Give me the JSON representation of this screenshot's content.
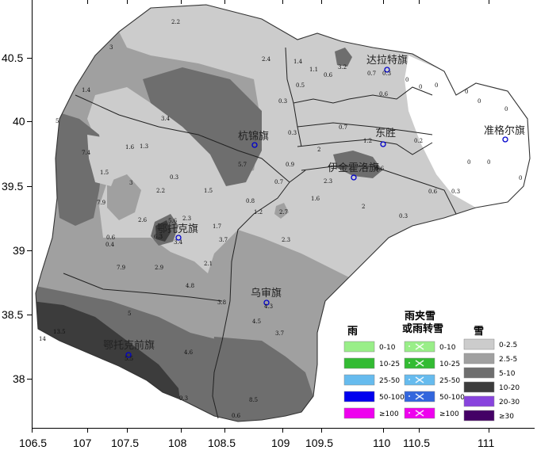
{
  "map": {
    "x_ticks": [
      "106.5",
      "107",
      "107.5",
      "108",
      "108.5",
      "109",
      "109.5",
      "110",
      "110.5",
      "111"
    ],
    "y_ticks": [
      "40.5",
      "40",
      "39.5",
      "39",
      "38.5",
      "38"
    ],
    "cities": [
      "达拉特旗",
      "杭锦旗",
      "东胜",
      "准格尔旗",
      "伊金霍洛旗",
      "鄂托克旗",
      "乌审旗",
      "鄂托克前旗"
    ],
    "value_labels": [
      "2.2",
      "3",
      "1.4",
      "2.4",
      "1.4",
      "1.1",
      "0.6",
      "3.2",
      "0.7",
      "0.3",
      "0.5",
      "0.6",
      "0",
      "0",
      "0",
      "0",
      "0",
      "0",
      "0.3",
      "3.4",
      "5",
      "7.4",
      "1.6",
      "1.3",
      "0.3",
      "0.7",
      "1.2",
      "0.2",
      "2",
      "0.9",
      "5.7",
      "1.5",
      "3",
      "0.3",
      "2.2",
      "1.5",
      "2.3",
      "0.7",
      "1.6",
      "0.8",
      "7.9",
      "2.6",
      "6.3",
      "5.6",
      "2.3",
      "1.7",
      "1.2",
      "2.7",
      "2",
      "0.3",
      "0.6",
      "0.4",
      "3.4",
      "3.7",
      "2.3",
      "7.9",
      "2.9",
      "2.1",
      "4.8",
      "5",
      "3.8",
      "4.3",
      "13.5",
      "14",
      "4.6",
      "4.5",
      "3.7",
      "5.5",
      "9.3",
      "8.5",
      "0.6",
      "0.6",
      "0",
      "0",
      "0",
      "0.3",
      "0.6"
    ]
  },
  "legend": {
    "rain": {
      "title": "雨",
      "items": [
        {
          "label": "0-10",
          "color": "#99ee88"
        },
        {
          "label": "10-25",
          "color": "#33bb33"
        },
        {
          "label": "25-50",
          "color": "#66bbee"
        },
        {
          "label": "50-100",
          "color": "#0000ee"
        },
        {
          "label": "≥100",
          "color": "#ee00ee"
        }
      ]
    },
    "sleet": {
      "title_line1": "雨夹雪",
      "title_line2": "或雨转雪",
      "items": [
        {
          "label": "0-10",
          "color": "#99ee88"
        },
        {
          "label": "10-25",
          "color": "#33bb33"
        },
        {
          "label": "25-50",
          "color": "#66bbee"
        },
        {
          "label": "50-100",
          "color": "#3366dd"
        },
        {
          "label": "≥100",
          "color": "#ee00ee"
        }
      ]
    },
    "snow": {
      "title": "雪",
      "items": [
        {
          "label": "0-2.5",
          "color": "#cccccc"
        },
        {
          "label": "2.5-5",
          "color": "#a0a0a0"
        },
        {
          "label": "5-10",
          "color": "#6e6e6e"
        },
        {
          "label": "10-20",
          "color": "#3c3c3c"
        },
        {
          "label": "20-30",
          "color": "#8844dd"
        },
        {
          "label": "≥30",
          "color": "#440066"
        }
      ]
    }
  }
}
